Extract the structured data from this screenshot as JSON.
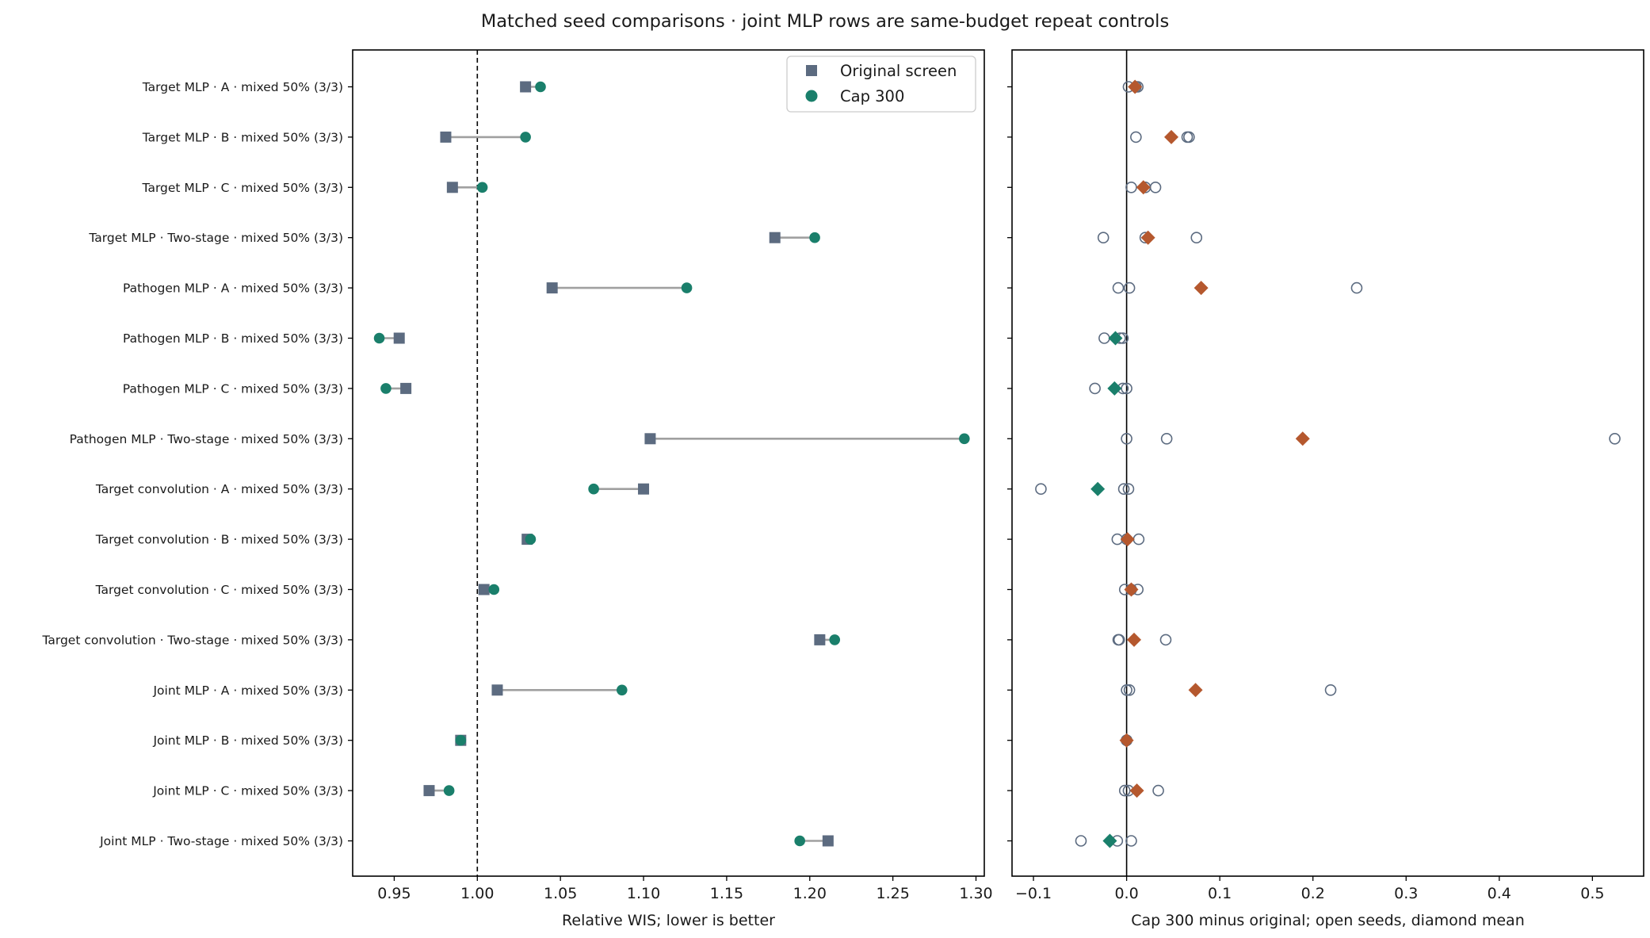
{
  "chart_data": {
    "title": "Matched seed comparisons · joint MLP rows are same-budget repeat controls",
    "categories": [
      "Target MLP · A · mixed 50% (3/3)",
      "Target MLP · B · mixed 50% (3/3)",
      "Target MLP · C · mixed 50% (3/3)",
      "Target MLP · Two-stage · mixed 50% (3/3)",
      "Pathogen MLP · A · mixed 50% (3/3)",
      "Pathogen MLP · B · mixed 50% (3/3)",
      "Pathogen MLP · C · mixed 50% (3/3)",
      "Pathogen MLP · Two-stage · mixed 50% (3/3)",
      "Target convolution · A · mixed 50% (3/3)",
      "Target convolution · B · mixed 50% (3/3)",
      "Target convolution · C · mixed 50% (3/3)",
      "Target convolution · Two-stage · mixed 50% (3/3)",
      "Joint MLP · A · mixed 50% (3/3)",
      "Joint MLP · B · mixed 50% (3/3)",
      "Joint MLP · C · mixed 50% (3/3)",
      "Joint MLP · Two-stage · mixed 50% (3/3)"
    ],
    "panels": [
      {
        "type": "dumbbell",
        "xlabel": "Relative WIS; lower is better",
        "xlim": [
          0.925,
          1.305
        ],
        "xticks": [
          0.95,
          1.0,
          1.05,
          1.1,
          1.15,
          1.2,
          1.25,
          1.3
        ],
        "xtick_labels": [
          "0.95",
          "1.00",
          "1.05",
          "1.10",
          "1.15",
          "1.20",
          "1.25",
          "1.30"
        ],
        "reference_line": 1.0,
        "legend_position": "top-right",
        "series": [
          {
            "name": "Original screen",
            "marker": "square",
            "color": "#5c6b80",
            "values": [
              1.029,
              0.981,
              0.985,
              1.179,
              1.045,
              0.953,
              0.957,
              1.104,
              1.1,
              1.03,
              1.004,
              1.206,
              1.012,
              0.99,
              0.971,
              1.211
            ]
          },
          {
            "name": "Cap 300",
            "marker": "circle",
            "color": "#1a7f6b",
            "values": [
              1.038,
              1.029,
              1.003,
              1.203,
              1.126,
              0.941,
              0.945,
              1.293,
              1.07,
              1.032,
              1.01,
              1.215,
              1.087,
              0.99,
              0.983,
              1.194
            ]
          }
        ],
        "connector_color": "#a0a0a0"
      },
      {
        "type": "scatter",
        "xlabel": "Cap 300 minus original; open seeds, diamond mean",
        "xlim": [
          -0.123,
          0.555
        ],
        "xticks": [
          -0.1,
          0.0,
          0.1,
          0.2,
          0.3,
          0.4,
          0.5
        ],
        "xtick_labels": [
          "−0.1",
          "0.0",
          "0.1",
          "0.2",
          "0.3",
          "0.4",
          "0.5"
        ],
        "reference_line": 0.0,
        "seed_color": "#5c6b80",
        "positive_mean_color": "#b5582e",
        "negative_mean_color": "#1a7f6b",
        "seeds": [
          [
            0.002,
            0.01,
            0.012
          ],
          [
            0.01,
            0.065,
            0.067
          ],
          [
            0.005,
            0.031,
            0.02
          ],
          [
            -0.025,
            0.02,
            0.075
          ],
          [
            -0.009,
            0.003,
            0.247
          ],
          [
            -0.024,
            -0.007,
            -0.004
          ],
          [
            -0.034,
            -0.004,
            0.0
          ],
          [
            0.0,
            0.043,
            0.524
          ],
          [
            -0.092,
            -0.003,
            0.002
          ],
          [
            -0.01,
            0.013,
            0.0
          ],
          [
            -0.002,
            0.012,
            0.005
          ],
          [
            -0.009,
            -0.008,
            0.042
          ],
          [
            0.0,
            0.003,
            0.219
          ],
          [
            0.0,
            0.0,
            0.0
          ],
          [
            -0.002,
            0.002,
            0.034
          ],
          [
            -0.049,
            -0.01,
            0.005
          ]
        ],
        "means": [
          0.009,
          0.048,
          0.018,
          0.023,
          0.08,
          -0.012,
          -0.013,
          0.189,
          -0.031,
          0.001,
          0.005,
          0.008,
          0.074,
          0.0,
          0.011,
          -0.018
        ]
      }
    ]
  }
}
